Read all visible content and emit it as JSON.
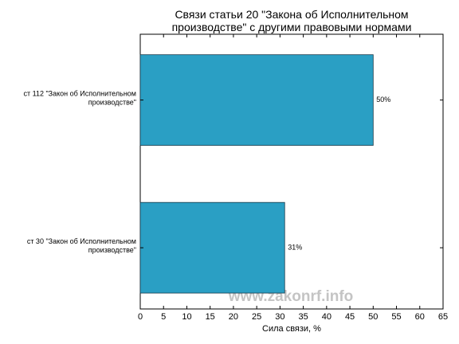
{
  "chart_data": {
    "type": "barh",
    "title": [
      "Связи статьи 20 \"Закона об Исполнительном",
      "производстве\" с другими правовыми нормами"
    ],
    "categories": [
      [
        "ст 112 \"Закон об Исполнительном",
        "производстве\""
      ],
      [
        "ст 30 \"Закон об Исполнительном",
        "производстве\""
      ]
    ],
    "values": [
      50,
      31
    ],
    "value_labels": [
      "50%",
      "31%"
    ],
    "color": "#2a9fc4",
    "xlabel": "Сила связи, %",
    "xlim": [
      0,
      65
    ],
    "xticks": [
      0,
      5,
      10,
      15,
      20,
      25,
      30,
      35,
      40,
      45,
      50,
      55,
      60,
      65
    ],
    "watermark": "www.zakonrf.info"
  }
}
